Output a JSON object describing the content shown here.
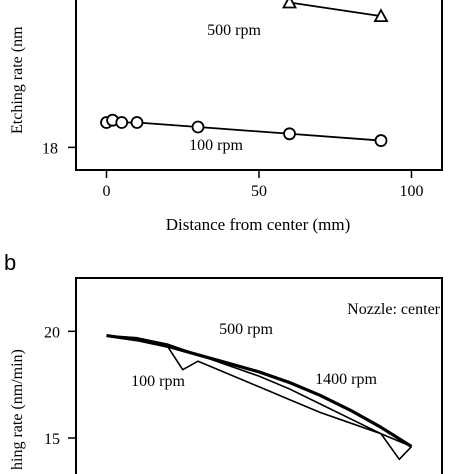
{
  "panel_b_label": "b",
  "chart_data": [
    {
      "panel": "a",
      "type": "scatter",
      "title": "",
      "xlabel": "Distance from center (mm)",
      "ylabel": "Etching rate (nm",
      "xlim": [
        -10,
        110
      ],
      "ylim": [
        17.5,
        21.3
      ],
      "xticks": [
        0,
        50,
        100
      ],
      "yticks": [
        18
      ],
      "series": [
        {
          "name": "500 rpm",
          "marker": "triangle",
          "x": [
            60,
            90
          ],
          "y": [
            21.2,
            20.9
          ]
        },
        {
          "name": "100 rpm",
          "marker": "circle",
          "x": [
            0,
            2,
            5,
            10,
            30,
            60,
            90
          ],
          "y": [
            18.55,
            18.6,
            18.55,
            18.55,
            18.45,
            18.3,
            18.15
          ]
        }
      ]
    },
    {
      "panel": "b",
      "type": "line",
      "title": "",
      "xlabel": "",
      "ylabel": "hing rate (nm/min)",
      "annotation": "Nozzle: center",
      "ylim": [
        13.5,
        22.5
      ],
      "yticks": [
        15,
        20
      ],
      "xlim": [
        -10,
        110
      ],
      "series": [
        {
          "name": "500 rpm",
          "x": [
            0,
            10,
            20,
            30,
            40,
            50,
            60,
            70,
            80,
            90,
            100
          ],
          "y": [
            19.8,
            19.6,
            19.3,
            18.9,
            18.5,
            18.1,
            17.6,
            17.0,
            16.3,
            15.5,
            14.6
          ]
        },
        {
          "name": "1400 rpm",
          "x": [
            0,
            10,
            20,
            30,
            40,
            50,
            60,
            70,
            80,
            90,
            100
          ],
          "y": [
            19.8,
            19.7,
            19.4,
            18.9,
            18.4,
            17.9,
            17.3,
            16.6,
            15.9,
            15.2,
            14.6
          ]
        },
        {
          "name": "100 rpm",
          "x": [
            0,
            10,
            20,
            25,
            30,
            40,
            50,
            60,
            70,
            80,
            90,
            96,
            100
          ],
          "y": [
            19.8,
            19.6,
            19.3,
            18.2,
            18.6,
            18.0,
            17.4,
            16.8,
            16.2,
            15.7,
            15.2,
            14.0,
            14.6
          ]
        }
      ]
    }
  ]
}
